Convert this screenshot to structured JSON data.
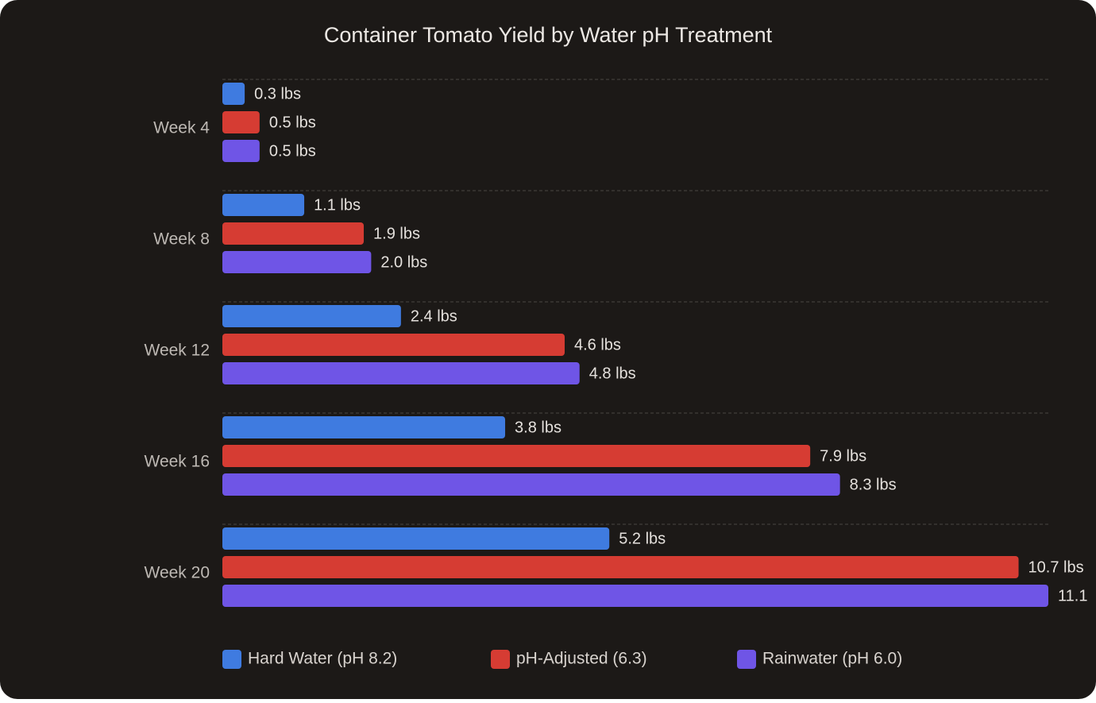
{
  "chart_data": {
    "type": "bar",
    "orientation": "horizontal",
    "title": "Container Tomato Yield by Water pH Treatment",
    "categories": [
      "Week 4",
      "Week 8",
      "Week 12",
      "Week 16",
      "Week 20"
    ],
    "series": [
      {
        "name": "Hard Water (pH 8.2)",
        "color": "#3f7be0",
        "values": [
          0.3,
          1.1,
          2.4,
          3.8,
          5.2
        ],
        "value_labels": [
          "0.3 lbs",
          "1.1 lbs",
          "2.4 lbs",
          "3.8 lbs",
          "5.2 lbs"
        ]
      },
      {
        "name": "pH-Adjusted (6.3)",
        "color": "#d63c33",
        "values": [
          0.5,
          1.9,
          4.6,
          7.9,
          10.7
        ],
        "value_labels": [
          "0.5 lbs",
          "1.9 lbs",
          "4.6 lbs",
          "7.9 lbs",
          "10.7 lbs"
        ]
      },
      {
        "name": "Rainwater (pH 6.0)",
        "color": "#6f55e6",
        "values": [
          0.5,
          2.0,
          4.8,
          8.3,
          11.1
        ],
        "value_labels": [
          "0.5 lbs",
          "2.0 lbs",
          "4.8 lbs",
          "8.3 lbs",
          "11.1"
        ]
      }
    ],
    "legend": "bottom"
  }
}
